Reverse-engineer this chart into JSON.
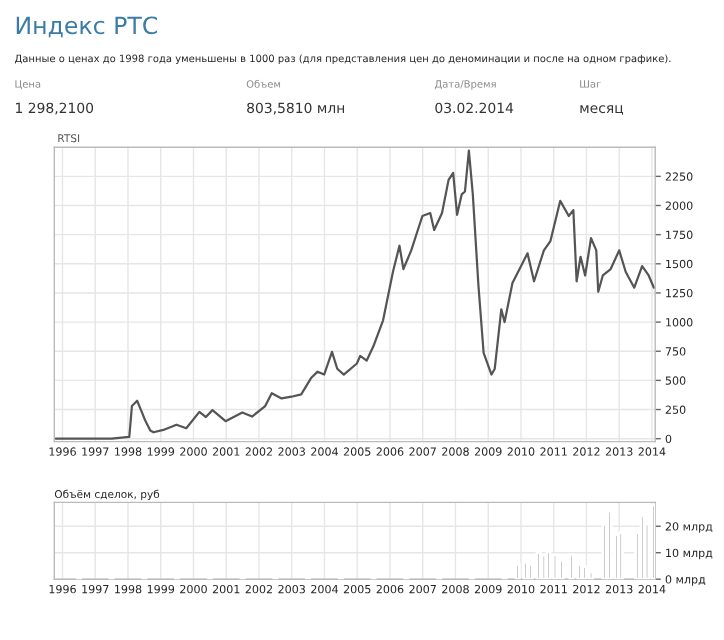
{
  "chart_data": [
    {
      "type": "line",
      "title": "Индекс РТС",
      "subtitle": "Данные о ценах до 1998 года уменьшены в 1000 раз (для представления цен до деноминации и после на одном графике).",
      "annotations": [
        "Цена",
        "1 298,2100",
        "Объем",
        "803,5810 млн",
        "Дата/Время",
        "03.02.2014",
        "Шаг",
        "месяц"
      ],
      "series": [
        {
          "name": "RTSI",
          "color": "#555555",
          "x": [
            1995.8,
            1996.5,
            1997.5,
            1998.04,
            1998.12,
            1998.28,
            1998.42,
            1998.52,
            1998.68,
            1998.78,
            1999.08,
            1999.48,
            1999.78,
            2000.18,
            2000.38,
            2000.58,
            2000.98,
            2001.49,
            2001.79,
            2002.19,
            2002.39,
            2002.69,
            2002.99,
            2003.29,
            2003.59,
            2003.79,
            2003.99,
            2004.23,
            2004.39,
            2004.59,
            2004.99,
            2005.09,
            2005.29,
            2005.49,
            2005.79,
            2006.09,
            2006.29,
            2006.41,
            2006.65,
            2006.99,
            2007.23,
            2007.35,
            2007.59,
            2007.79,
            2007.93,
            2008.05,
            2008.19,
            2008.29,
            2008.41,
            2008.53,
            2008.7,
            2008.86,
            2009.1,
            2009.2,
            2009.4,
            2009.5,
            2009.74,
            2010.0,
            2010.2,
            2010.4,
            2010.7,
            2010.9,
            2011.2,
            2011.46,
            2011.6,
            2011.7,
            2011.82,
            2011.96,
            2012.14,
            2012.3,
            2012.36,
            2012.5,
            2012.74,
            2013.0,
            2013.2,
            2013.46,
            2013.7,
            2013.9,
            2014.06
          ],
          "values": [
            0,
            0,
            0,
            15,
            280,
            325,
            230,
            160,
            70,
            55,
            75,
            120,
            90,
            230,
            185,
            245,
            150,
            225,
            190,
            280,
            390,
            345,
            360,
            380,
            520,
            575,
            550,
            745,
            600,
            550,
            645,
            710,
            670,
            790,
            1015,
            1430,
            1655,
            1455,
            1615,
            1910,
            1935,
            1790,
            1935,
            2220,
            2280,
            1920,
            2095,
            2120,
            2470,
            2095,
            1320,
            735,
            550,
            600,
            1110,
            1000,
            1335,
            1480,
            1590,
            1350,
            1615,
            1695,
            2040,
            1910,
            1960,
            1350,
            1560,
            1400,
            1720,
            1615,
            1260,
            1400,
            1455,
            1615,
            1430,
            1295,
            1480,
            1400,
            1295
          ]
        }
      ],
      "xlim": [
        1995.75,
        2014.1
      ],
      "ylim": [
        -25,
        2500
      ],
      "xticks": [
        1996,
        1997,
        1998,
        1999,
        2000,
        2001,
        2002,
        2003,
        2004,
        2005,
        2006,
        2007,
        2008,
        2009,
        2010,
        2011,
        2012,
        2013,
        2014
      ],
      "yticks": [
        0,
        250,
        500,
        750,
        1000,
        1250,
        1500,
        1750,
        2000,
        2250
      ],
      "grid": true
    },
    {
      "type": "bar",
      "title": "Объём сделок, руб",
      "series": [
        {
          "color": "#999999",
          "x": [
            1996.5,
            1997.5,
            1998.5,
            1999.5,
            2000.5,
            2001.5,
            2002.5,
            2003.5,
            2004.5,
            2005.5,
            2006.5,
            2007.5,
            2008.5,
            2009.5,
            2009.9,
            2010.14,
            2010.3,
            2010.54,
            2010.7,
            2010.84,
            2011.04,
            2011.24,
            2011.54,
            2011.78,
            2011.94,
            2012.14,
            2012.55,
            2012.71,
            2012.91,
            2013.05,
            2013.55,
            2013.71,
            2013.85,
            2014.05
          ],
          "values": [
            0.3,
            0.3,
            0.5,
            0.3,
            0.3,
            0.4,
            0.5,
            0.5,
            0.5,
            0.6,
            1,
            1,
            1,
            0.5,
            5.6,
            6.4,
            5.6,
            10,
            9.2,
            10.4,
            9.2,
            7.2,
            9.2,
            5.6,
            4.8,
            2.8,
            20.8,
            25.6,
            16.8,
            17.6,
            17.6,
            24,
            20.8,
            28
          ]
        }
      ],
      "xlim": [
        1995.75,
        2014.1
      ],
      "ylim": [
        0,
        29
      ],
      "xticks": [
        1996,
        1997,
        1998,
        1999,
        2000,
        2001,
        2002,
        2003,
        2004,
        2005,
        2006,
        2007,
        2008,
        2009,
        2010,
        2011,
        2012,
        2013,
        2014
      ],
      "yticks": [
        {
          "value": 0,
          "label": "0 млрд"
        },
        {
          "value": 10,
          "label": "10 млрд"
        },
        {
          "value": 20,
          "label": "20 млрд"
        }
      ],
      "grid": true
    }
  ]
}
